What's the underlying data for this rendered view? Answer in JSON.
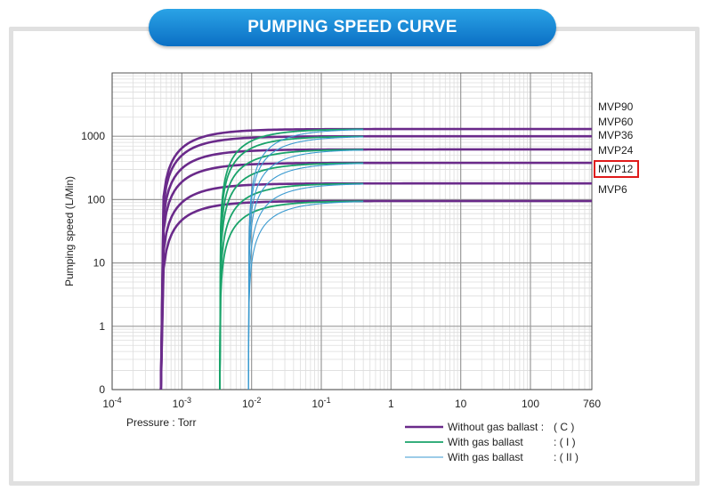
{
  "header": {
    "title": "PUMPING SPEED CURVE"
  },
  "colors": {
    "title_bg": "#1f8ad8",
    "without_ballast": "#6a2a8a",
    "with_ballast_1": "#1aa36a",
    "with_ballast_2": "#3a9ad0",
    "highlight": "#e01a1a"
  },
  "chart_data": {
    "type": "line",
    "title": "PUMPING SPEED CURVE",
    "xlabel": "Pressure : Torr",
    "ylabel": "Pumping speed (L/Min)",
    "xscale": "log",
    "yscale": "log",
    "xlim": [
      0.0001,
      760
    ],
    "ylim": [
      0,
      10000
    ],
    "x_ticks": [
      {
        "base": "10",
        "exp": "-4",
        "value": 0.0001
      },
      {
        "base": "10",
        "exp": "-3",
        "value": 0.001
      },
      {
        "base": "10",
        "exp": "-2",
        "value": 0.01
      },
      {
        "base": "10",
        "exp": "-1",
        "value": 0.1
      },
      {
        "base": "1",
        "exp": "",
        "value": 1
      },
      {
        "base": "10",
        "exp": "",
        "value": 10
      },
      {
        "base": "100",
        "exp": "",
        "value": 100
      },
      {
        "base": "760",
        "exp": "",
        "value": 760
      }
    ],
    "y_ticks": [
      {
        "label": "0",
        "value": 0.1
      },
      {
        "label": "1",
        "value": 1
      },
      {
        "label": "10",
        "value": 10
      },
      {
        "label": "100",
        "value": 100
      },
      {
        "label": "1000",
        "value": 1000
      }
    ],
    "series": [
      {
        "name": "MVP90",
        "max": 1300
      },
      {
        "name": "MVP60",
        "max": 1000
      },
      {
        "name": "MVP36",
        "max": 620
      },
      {
        "name": "MVP24",
        "max": 380
      },
      {
        "name": "MVP12",
        "max": 180
      },
      {
        "name": "MVP6",
        "max": 95
      }
    ],
    "ballast_modes": [
      {
        "mode": "C",
        "ultimate_torr": 0.0005,
        "color": "#6a2a8a"
      },
      {
        "mode": "I",
        "ultimate_torr": 0.0035,
        "color": "#1aa36a"
      },
      {
        "mode": "II",
        "ultimate_torr": 0.009,
        "color": "#3a9ad0"
      }
    ],
    "highlighted_series": "MVP12",
    "grid": true,
    "legend_position": "bottom-right",
    "legend": [
      {
        "label": "Without gas ballast :",
        "code": "( C )",
        "color": "#6a2a8a"
      },
      {
        "label": "With gas ballast",
        "code": ": ( I )",
        "color": "#1aa36a"
      },
      {
        "label": "With gas ballast",
        "code": ": ( II )",
        "color": "#3a9ad0"
      }
    ]
  }
}
